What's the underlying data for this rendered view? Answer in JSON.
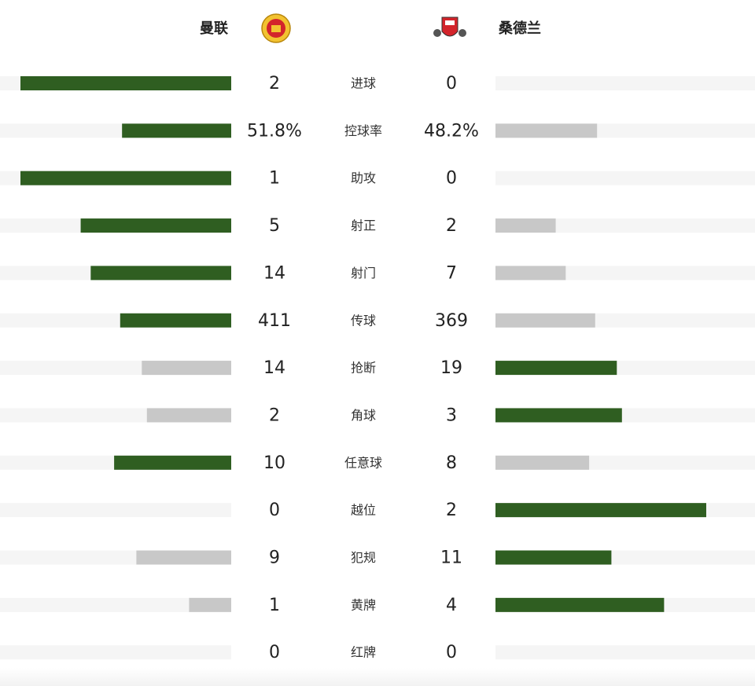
{
  "header": {
    "home_team": "曼联",
    "away_team": "桑德兰"
  },
  "rows": [
    {
      "label": "进球",
      "home": 2,
      "away": 0
    },
    {
      "label": "控球率",
      "home": 51.8,
      "away": 48.2,
      "home_label": "51.8%",
      "away_label": "48.2%"
    },
    {
      "label": "助攻",
      "home": 1,
      "away": 0
    },
    {
      "label": "射正",
      "home": 5,
      "away": 2
    },
    {
      "label": "射门",
      "home": 14,
      "away": 7
    },
    {
      "label": "传球",
      "home": 411,
      "away": 369
    },
    {
      "label": "抢断",
      "home": 14,
      "away": 19
    },
    {
      "label": "角球",
      "home": 2,
      "away": 3
    },
    {
      "label": "任意球",
      "home": 10,
      "away": 8
    },
    {
      "label": "越位",
      "home": 0,
      "away": 2
    },
    {
      "label": "犯规",
      "home": 9,
      "away": 11
    },
    {
      "label": "黄牌",
      "home": 1,
      "away": 4
    },
    {
      "label": "红牌",
      "home": 0,
      "away": 0
    }
  ]
}
